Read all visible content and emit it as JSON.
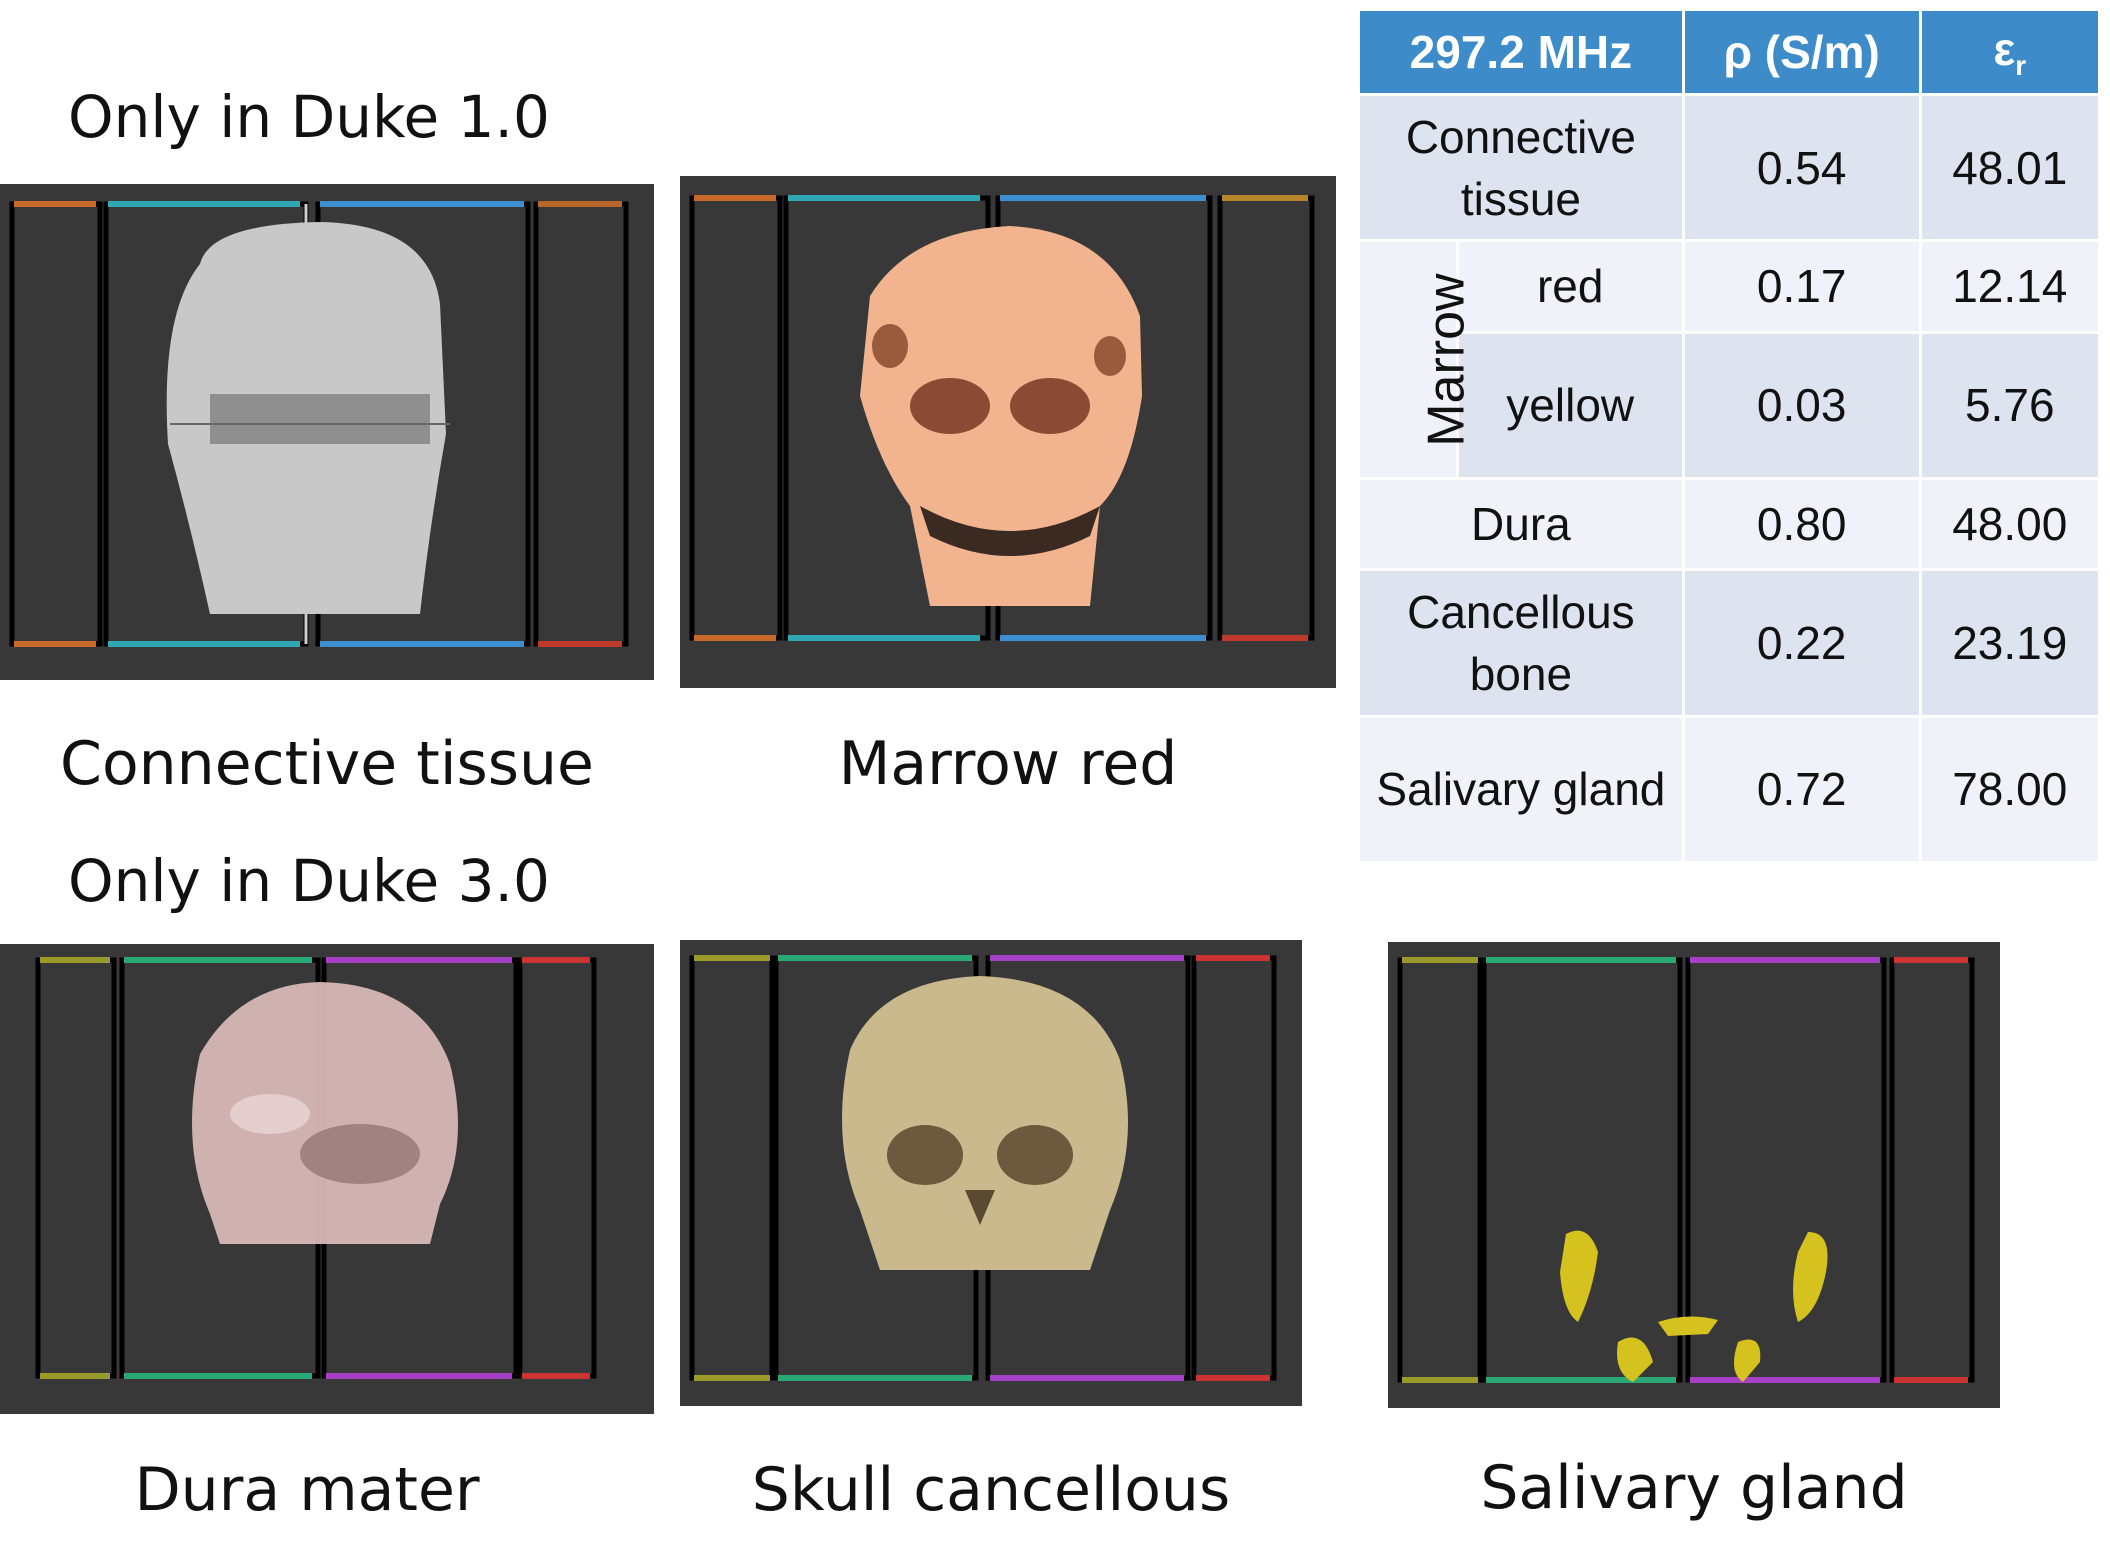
{
  "headings": {
    "duke1": "Only in Duke 1.0",
    "duke3": "Only in Duke 3.0"
  },
  "captions": {
    "connective": "Connective tissue",
    "marrow": "Marrow red",
    "dura": "Dura mater",
    "skull": "Skull cancellous",
    "salivary": "Salivary gland"
  },
  "table": {
    "header": {
      "frequency": "297.2 MHz",
      "sigma": "ρ  (S/m)",
      "eps": "ε",
      "eps_sub": "r"
    },
    "rows": [
      {
        "tissue": "Connective tissue",
        "sigma": "0.54",
        "eps": "48.01"
      },
      {
        "group": "Marrow",
        "tissue": "red",
        "sigma": "0.17",
        "eps": "12.14"
      },
      {
        "group": "Marrow",
        "tissue": "yellow",
        "sigma": "0.03",
        "eps": "5.76"
      },
      {
        "tissue": "Dura",
        "sigma": "0.80",
        "eps": "48.00"
      },
      {
        "tissue": "Cancellous bone",
        "sigma": "0.22",
        "eps": "23.19"
      },
      {
        "tissue": "Salivary gland",
        "sigma": "0.72",
        "eps": "78.00"
      }
    ]
  },
  "colors": {
    "panel_bg": "#383838",
    "header_bg": "#3d8cc9",
    "cell_dark": "#dde3ef",
    "cell_light": "#eff2f8",
    "connective": "#c8c8c8",
    "marrow": "#f2b48f",
    "dura": "#d7b7b6",
    "skull": "#cbb98e",
    "salivary": "#d6c21f"
  }
}
